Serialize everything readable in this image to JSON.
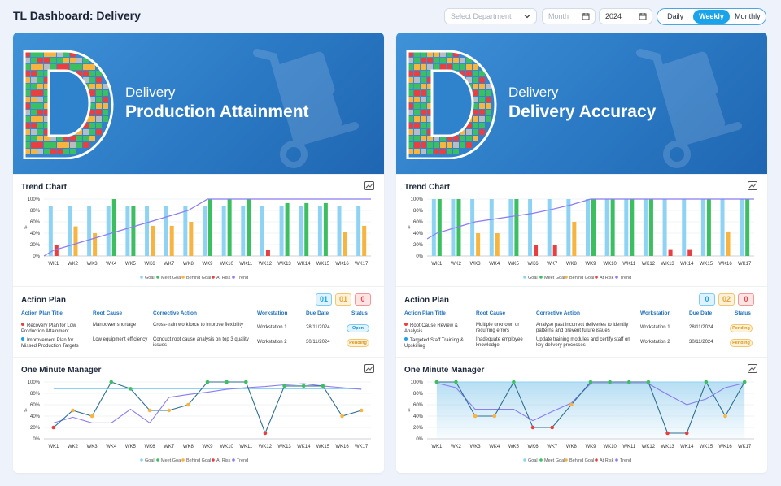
{
  "header": {
    "title": "TL Dashboard: Delivery",
    "department_placeholder": "Select Department",
    "month_placeholder": "Month",
    "year_value": "2024",
    "periods": [
      "Daily",
      "Weekly",
      "Monthly"
    ],
    "active_period": "Weekly"
  },
  "colors": {
    "goal": "#8fd3f4",
    "meet_goal": "#3cbf60",
    "behind_goal": "#f7b43e",
    "at_risk": "#e84040",
    "trend": "#8b7cf0"
  },
  "common": {
    "trend_chart_title": "Trend Chart",
    "action_plan_title": "Action Plan",
    "omm_title": "One Minute Manager",
    "columns": [
      "Action Plan Title",
      "Root Cause",
      "Corrective Action",
      "Workstation",
      "Due Date",
      "Status"
    ]
  },
  "panels": [
    {
      "banner_sub": "Delivery",
      "banner_title": "Production Attainment",
      "counts": [
        "01",
        "01",
        "0"
      ],
      "rows": [
        {
          "dot": "#e84040",
          "title": "Recovery Plan for Low Production Attainment",
          "root": "Manpower shortage",
          "action": "Cross-train workforce to improve flexibility",
          "ws": "Workstation 1",
          "due": "28/11/2024",
          "status": "Open"
        },
        {
          "dot": "#1aa3e8",
          "title": "Improvement Plan for Missed Production Targets",
          "root": "Low equipment efficiency",
          "action": "Conduct root cause analysis on top 3 quality issues",
          "ws": "Workstation 2",
          "due": "30/11/2024",
          "status": "Pending"
        }
      ]
    },
    {
      "banner_sub": "Delivery",
      "banner_title": "Delivery Accuracy",
      "counts": [
        "0",
        "02",
        "0"
      ],
      "rows": [
        {
          "dot": "#e84040",
          "title": "Root Cause Review & Analysis",
          "root": "Multiple unknown or recurring errors",
          "action": "Analyse past incorrect deliveries to identify patterns and prevent future issues",
          "ws": "Workstation 1",
          "due": "28/11/2024",
          "status": "Pending"
        },
        {
          "dot": "#1aa3e8",
          "title": "Targeted Staff Training & Upskilling",
          "root": "Inadequate employee knowledge",
          "action": "Update training modules and certify staff on key delivery processes",
          "ws": "Workstation 2",
          "due": "30/11/2024",
          "status": "Pending"
        }
      ]
    }
  ],
  "chart_data": [
    {
      "type": "bar",
      "title": "Trend Chart",
      "categories": [
        "WK1",
        "WK2",
        "WK3",
        "WK4",
        "WK5",
        "WK6",
        "WK7",
        "WK8",
        "WK9",
        "WK10",
        "WK11",
        "WK12",
        "WK13",
        "WK14",
        "WK15",
        "WK16",
        "WK17"
      ],
      "ylabel": "#",
      "ylim": [
        0,
        100
      ],
      "yticks": [
        "0%",
        "20%",
        "40%",
        "60%",
        "80%",
        "100%"
      ],
      "legend": [
        "Goal",
        "Meet Goal",
        "Behind Goal",
        "At Risk",
        "Trend"
      ],
      "goal": [
        88,
        88,
        88,
        88,
        88,
        88,
        88,
        88,
        88,
        88,
        88,
        88,
        88,
        88,
        88,
        88,
        88
      ],
      "actual": [
        {
          "v": 20,
          "s": "risk"
        },
        {
          "v": 52,
          "s": "behind"
        },
        {
          "v": 40,
          "s": "behind"
        },
        {
          "v": 100,
          "s": "meet"
        },
        {
          "v": 88,
          "s": "meet"
        },
        {
          "v": 53,
          "s": "behind"
        },
        {
          "v": 53,
          "s": "behind"
        },
        {
          "v": 60,
          "s": "behind"
        },
        {
          "v": 100,
          "s": "meet"
        },
        {
          "v": 100,
          "s": "meet"
        },
        {
          "v": 100,
          "s": "meet"
        },
        {
          "v": 10,
          "s": "risk"
        },
        {
          "v": 93,
          "s": "meet"
        },
        {
          "v": 93,
          "s": "meet"
        },
        {
          "v": 93,
          "s": "meet"
        },
        {
          "v": 42,
          "s": "behind"
        },
        {
          "v": 53,
          "s": "behind"
        }
      ],
      "trend": [
        10,
        20,
        30,
        40,
        50,
        60,
        70,
        80,
        100,
        100,
        100,
        100,
        100,
        100,
        100,
        100,
        100
      ]
    },
    {
      "type": "line",
      "title": "One Minute Manager",
      "categories": [
        "WK1",
        "WK2",
        "WK3",
        "WK4",
        "WK5",
        "WK6",
        "WK7",
        "WK8",
        "WK9",
        "WK10",
        "WK11",
        "WK12",
        "WK13",
        "WK14",
        "WK15",
        "WK16",
        "WK17"
      ],
      "ylabel": "#",
      "ylim": [
        0,
        100
      ],
      "yticks": [
        "0%",
        "20%",
        "40%",
        "60%",
        "80%",
        "100%"
      ],
      "legend": [
        "Goal",
        "Meet Goal",
        "Behind Goal",
        "At Risk",
        "Trend"
      ],
      "goal": [
        88,
        88,
        88,
        88,
        88,
        88,
        88,
        88,
        88,
        88,
        88,
        88,
        88,
        88,
        88,
        88,
        88
      ],
      "actual": [
        {
          "v": 20,
          "s": "risk"
        },
        {
          "v": 50,
          "s": "behind"
        },
        {
          "v": 40,
          "s": "behind"
        },
        {
          "v": 100,
          "s": "meet"
        },
        {
          "v": 88,
          "s": "meet"
        },
        {
          "v": 50,
          "s": "behind"
        },
        {
          "v": 50,
          "s": "behind"
        },
        {
          "v": 60,
          "s": "behind"
        },
        {
          "v": 100,
          "s": "meet"
        },
        {
          "v": 100,
          "s": "meet"
        },
        {
          "v": 100,
          "s": "meet"
        },
        {
          "v": 10,
          "s": "risk"
        },
        {
          "v": 93,
          "s": "meet"
        },
        {
          "v": 93,
          "s": "meet"
        },
        {
          "v": 93,
          "s": "meet"
        },
        {
          "v": 40,
          "s": "behind"
        },
        {
          "v": 50,
          "s": "behind"
        }
      ],
      "trend": [
        28,
        38,
        28,
        28,
        52,
        28,
        73,
        78,
        82,
        87,
        90,
        92,
        95,
        97,
        93,
        90,
        87
      ]
    },
    {
      "type": "bar",
      "title": "Trend Chart",
      "categories": [
        "WK1",
        "WK2",
        "WK3",
        "WK4",
        "WK5",
        "WK6",
        "WK7",
        "WK8",
        "WK9",
        "WK10",
        "WK11",
        "WK12",
        "WK13",
        "WK14",
        "WK15",
        "WK16",
        "WK17"
      ],
      "ylabel": "#",
      "ylim": [
        0,
        100
      ],
      "yticks": [
        "0%",
        "20%",
        "40%",
        "60%",
        "80%",
        "100%"
      ],
      "legend": [
        "Goal",
        "Meet Goal",
        "Behind Goal",
        "At Risk",
        "Trend"
      ],
      "goal": [
        100,
        100,
        100,
        100,
        100,
        100,
        100,
        100,
        100,
        100,
        100,
        100,
        100,
        100,
        100,
        100,
        100
      ],
      "actual": [
        {
          "v": 100,
          "s": "meet"
        },
        {
          "v": 100,
          "s": "meet"
        },
        {
          "v": 40,
          "s": "behind"
        },
        {
          "v": 40,
          "s": "behind"
        },
        {
          "v": 100,
          "s": "meet"
        },
        {
          "v": 20,
          "s": "risk"
        },
        {
          "v": 20,
          "s": "risk"
        },
        {
          "v": 60,
          "s": "behind"
        },
        {
          "v": 100,
          "s": "meet"
        },
        {
          "v": 100,
          "s": "meet"
        },
        {
          "v": 100,
          "s": "meet"
        },
        {
          "v": 100,
          "s": "meet"
        },
        {
          "v": 12,
          "s": "risk"
        },
        {
          "v": 12,
          "s": "risk"
        },
        {
          "v": 100,
          "s": "meet"
        },
        {
          "v": 43,
          "s": "behind"
        },
        {
          "v": 100,
          "s": "meet"
        }
      ],
      "trend": [
        40,
        50,
        60,
        65,
        70,
        75,
        82,
        90,
        100,
        100,
        100,
        100,
        100,
        100,
        100,
        100,
        100
      ]
    },
    {
      "type": "area",
      "title": "One Minute Manager",
      "categories": [
        "WK1",
        "WK2",
        "WK3",
        "WK4",
        "WK5",
        "WK6",
        "WK7",
        "WK8",
        "WK9",
        "WK10",
        "WK11",
        "WK12",
        "WK13",
        "WK14",
        "WK15",
        "WK16",
        "WK17"
      ],
      "ylabel": "#",
      "ylim": [
        0,
        100
      ],
      "yticks": [
        "0%",
        "20%",
        "40%",
        "60%",
        "80%",
        "100%"
      ],
      "legend": [
        "Goal",
        "Meet Goal",
        "Behind Goal",
        "At Risk",
        "Trend"
      ],
      "goal": [
        100,
        100,
        100,
        100,
        100,
        100,
        100,
        100,
        100,
        100,
        100,
        100,
        100,
        100,
        100,
        100,
        100
      ],
      "actual": [
        {
          "v": 100,
          "s": "meet"
        },
        {
          "v": 100,
          "s": "meet"
        },
        {
          "v": 40,
          "s": "behind"
        },
        {
          "v": 40,
          "s": "behind"
        },
        {
          "v": 100,
          "s": "meet"
        },
        {
          "v": 20,
          "s": "risk"
        },
        {
          "v": 20,
          "s": "risk"
        },
        {
          "v": 60,
          "s": "behind"
        },
        {
          "v": 100,
          "s": "meet"
        },
        {
          "v": 100,
          "s": "meet"
        },
        {
          "v": 100,
          "s": "meet"
        },
        {
          "v": 100,
          "s": "meet"
        },
        {
          "v": 10,
          "s": "risk"
        },
        {
          "v": 10,
          "s": "risk"
        },
        {
          "v": 100,
          "s": "meet"
        },
        {
          "v": 40,
          "s": "behind"
        },
        {
          "v": 100,
          "s": "meet"
        }
      ],
      "trend": [
        98,
        90,
        52,
        52,
        52,
        32,
        48,
        63,
        97,
        97,
        97,
        97,
        78,
        60,
        70,
        90,
        98
      ]
    }
  ]
}
